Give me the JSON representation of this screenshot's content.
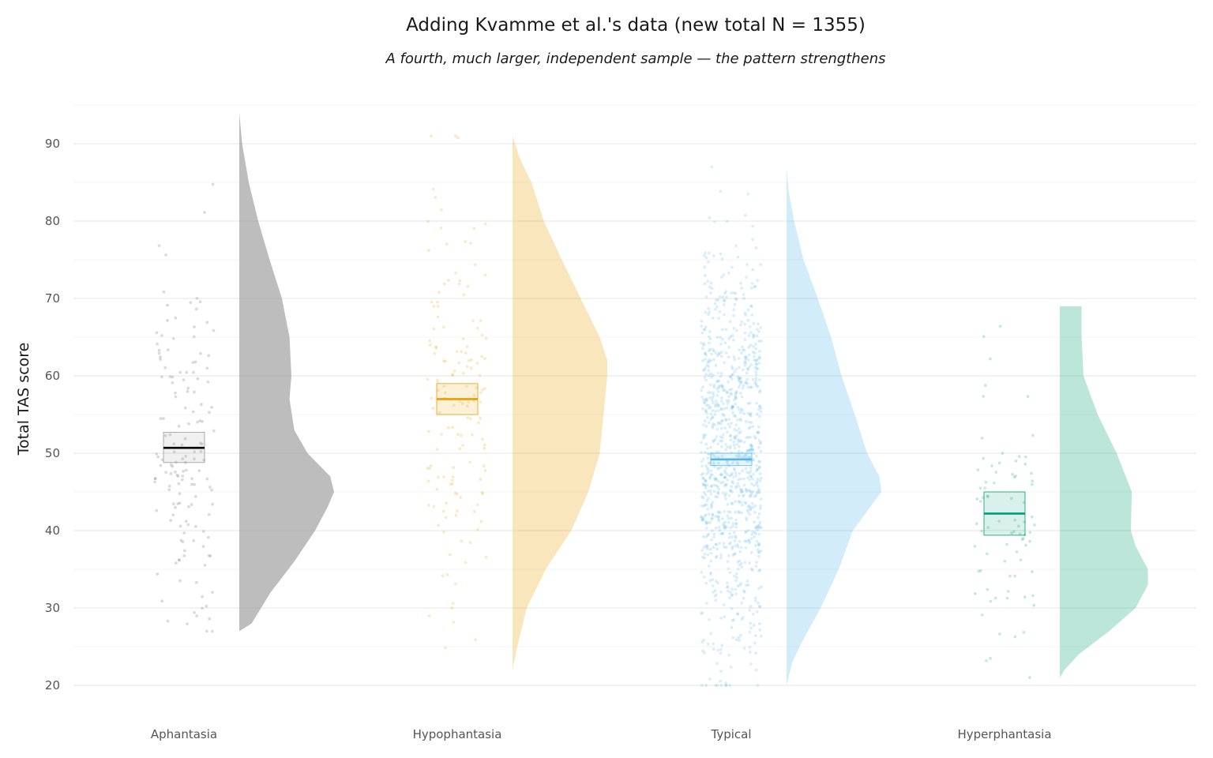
{
  "chart_data": {
    "type": "raincloud",
    "title": "Adding Kvamme et al.'s data (new total N = 1355)",
    "subtitle": "A fourth, much larger, independent sample — the pattern strengthens",
    "ylabel": "Total TAS score",
    "xlabel": "",
    "ylim": [
      16,
      95
    ],
    "yticks": [
      "20",
      "30",
      "40",
      "50",
      "60",
      "70",
      "80",
      "90"
    ],
    "grid": true,
    "legend": "none",
    "categories": [
      "Aphantasia",
      "Hypophantasia",
      "Typical",
      "Hyperphantasia"
    ],
    "groups": [
      {
        "name": "Aphantasia",
        "color": "#999999",
        "median_color": "#000000",
        "n_points": 150,
        "mean": 50.7,
        "ci_low": 48.8,
        "ci_high": 52.7,
        "min": 27,
        "max": 94,
        "density": [
          [
            27,
            0.0
          ],
          [
            28,
            0.13
          ],
          [
            32,
            0.33
          ],
          [
            36,
            0.58
          ],
          [
            40,
            0.8
          ],
          [
            43,
            0.93
          ],
          [
            45,
            1.0
          ],
          [
            47,
            0.96
          ],
          [
            50,
            0.72
          ],
          [
            53,
            0.58
          ],
          [
            57,
            0.53
          ],
          [
            60,
            0.55
          ],
          [
            65,
            0.53
          ],
          [
            70,
            0.45
          ],
          [
            75,
            0.32
          ],
          [
            80,
            0.2
          ],
          [
            85,
            0.1
          ],
          [
            90,
            0.03
          ],
          [
            94,
            0.0
          ]
        ],
        "points": []
      },
      {
        "name": "Hypophantasia",
        "color": "#E69F00",
        "median_color": "#E69F00",
        "n_points": 150,
        "mean": 57.0,
        "ci_low": 55.0,
        "ci_high": 59.0,
        "min": 22,
        "max": 91,
        "density": [
          [
            22,
            0.0
          ],
          [
            25,
            0.05
          ],
          [
            30,
            0.15
          ],
          [
            35,
            0.35
          ],
          [
            40,
            0.62
          ],
          [
            45,
            0.8
          ],
          [
            50,
            0.92
          ],
          [
            55,
            0.96
          ],
          [
            60,
            1.0
          ],
          [
            62,
            1.0
          ],
          [
            65,
            0.92
          ],
          [
            70,
            0.72
          ],
          [
            75,
            0.52
          ],
          [
            80,
            0.33
          ],
          [
            85,
            0.2
          ],
          [
            88,
            0.08
          ],
          [
            91,
            0.0
          ]
        ],
        "points": []
      },
      {
        "name": "Typical",
        "color": "#56B4E9",
        "median_color": "#56B4E9",
        "n_points": 1000,
        "mean": 49.2,
        "ci_low": 48.4,
        "ci_high": 50.0,
        "min": 20,
        "max": 87,
        "density": [
          [
            20,
            0.0
          ],
          [
            23,
            0.06
          ],
          [
            26,
            0.18
          ],
          [
            30,
            0.36
          ],
          [
            35,
            0.55
          ],
          [
            40,
            0.7
          ],
          [
            43,
            0.88
          ],
          [
            45,
            1.0
          ],
          [
            47,
            0.98
          ],
          [
            50,
            0.85
          ],
          [
            55,
            0.72
          ],
          [
            60,
            0.58
          ],
          [
            65,
            0.47
          ],
          [
            70,
            0.33
          ],
          [
            75,
            0.18
          ],
          [
            80,
            0.08
          ],
          [
            84,
            0.02
          ],
          [
            87,
            0.0
          ]
        ],
        "points": []
      },
      {
        "name": "Hyperphantasia",
        "color": "#009E73",
        "median_color": "#009E73",
        "n_points": 80,
        "mean": 42.2,
        "ci_low": 39.4,
        "ci_high": 45.0,
        "min": 21,
        "max": 69,
        "density": [
          [
            21,
            0.0
          ],
          [
            22,
            0.05
          ],
          [
            24,
            0.2
          ],
          [
            27,
            0.52
          ],
          [
            30,
            0.8
          ],
          [
            33,
            0.93
          ],
          [
            35,
            0.93
          ],
          [
            38,
            0.8
          ],
          [
            40,
            0.75
          ],
          [
            45,
            0.76
          ],
          [
            50,
            0.6
          ],
          [
            55,
            0.4
          ],
          [
            60,
            0.25
          ],
          [
            65,
            0.23
          ],
          [
            69,
            0.23
          ]
        ],
        "points": []
      }
    ]
  }
}
